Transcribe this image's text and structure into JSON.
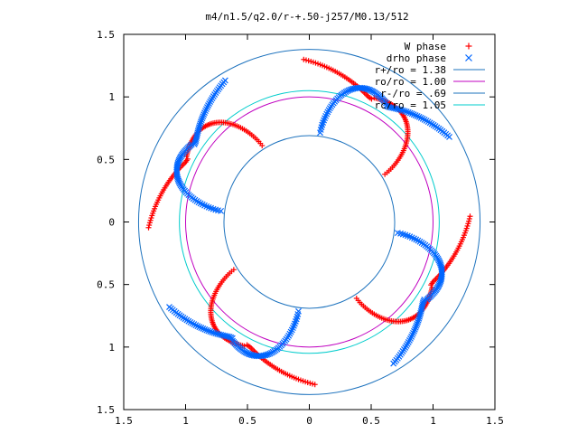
{
  "chart_data": {
    "type": "scatter",
    "title": "m4/n1.5/q2.0/r-+.50-j257/M0.13/512",
    "xlim": [
      -1.5,
      1.5
    ],
    "ylim": [
      -1.5,
      1.5
    ],
    "x_ticks": [
      {
        "value": -1.5,
        "label": "1.5"
      },
      {
        "value": -1.0,
        "label": "1"
      },
      {
        "value": -0.5,
        "label": "0.5"
      },
      {
        "value": 0,
        "label": "0"
      },
      {
        "value": 0.5,
        "label": "0.5"
      },
      {
        "value": 1.0,
        "label": "1"
      },
      {
        "value": 1.5,
        "label": "1.5"
      }
    ],
    "y_ticks": [
      {
        "value": 1.5,
        "label": "1.5"
      },
      {
        "value": 1.0,
        "label": "1"
      },
      {
        "value": 0.5,
        "label": "0.5"
      },
      {
        "value": 0,
        "label": "0"
      },
      {
        "value": -0.5,
        "label": "0.5"
      },
      {
        "value": -1.0,
        "label": "1"
      },
      {
        "value": -1.5,
        "label": "1.5"
      }
    ],
    "legend_position": "top-right",
    "series": [
      {
        "name": "W phase",
        "kind": "points",
        "marker": "plus",
        "color": "#ff0000",
        "spirals": {
          "arms": 4,
          "start_angle_deg": [
            32,
            122,
            212,
            302
          ],
          "r_start": 0.72,
          "r_end": 1.3,
          "angle_sweep_deg": 60
        }
      },
      {
        "name": "drho phase",
        "kind": "points",
        "marker": "cross",
        "color": "#0066ff",
        "spirals": {
          "arms": 4,
          "start_angle_deg": [
            -7,
            83,
            173,
            263
          ],
          "r_start": 0.72,
          "r_end": 1.32,
          "angle_sweep_deg": -52
        }
      },
      {
        "name": "r+/ro = 1.38",
        "kind": "circle",
        "radius": 1.38,
        "color": "#1e73be"
      },
      {
        "name": "ro/ro = 1.00",
        "kind": "circle",
        "radius": 1.0,
        "color": "#c000c0"
      },
      {
        "name": "r-/ro = .69",
        "kind": "circle",
        "radius": 0.69,
        "color": "#1e73be"
      },
      {
        "name": "rc/ro = 1.05",
        "kind": "circle",
        "radius": 1.05,
        "color": "#00cccc"
      }
    ]
  }
}
